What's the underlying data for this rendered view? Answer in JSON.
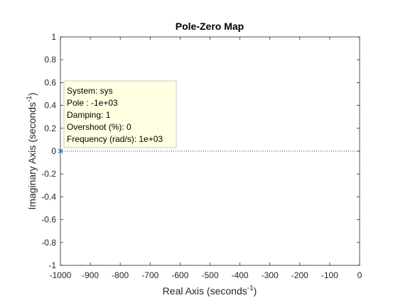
{
  "chart_data": {
    "type": "scatter",
    "title": "Pole-Zero Map",
    "xlabel": {
      "text": "Real Axis (seconds",
      "sup": "-1",
      "close": ")"
    },
    "ylabel": {
      "text": "Imaginary Axis (seconds",
      "sup": "-1",
      "close": ")"
    },
    "xlim": [
      -1000,
      0
    ],
    "ylim": [
      -1,
      1
    ],
    "xticks": [
      -1000,
      -900,
      -800,
      -700,
      -600,
      -500,
      -400,
      -300,
      -200,
      -100,
      0
    ],
    "yticks": [
      -1,
      -0.8,
      -0.6,
      -0.4,
      -0.2,
      0,
      0.2,
      0.4,
      0.6,
      0.8,
      1
    ],
    "grid": false,
    "series": [
      {
        "marker": "x",
        "color": "#0072bd",
        "points": [
          {
            "x": -1000,
            "y": 0
          }
        ]
      }
    ],
    "reference_line": {
      "y": 0,
      "style": "dotted",
      "color": "#000000"
    },
    "datatip": {
      "lines": [
        "System: sys",
        "Pole : -1e+03",
        "Damping: 1",
        "Overshoot (%): 0",
        "Frequency (rad/s): 1e+03"
      ],
      "background": "#ffffe1",
      "border": "#c8c8c8"
    },
    "colors": {
      "axis": "#262626",
      "plot_bg": "#ffffff"
    }
  }
}
